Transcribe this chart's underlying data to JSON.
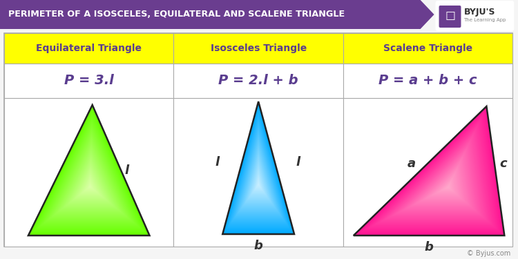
{
  "title": "PERIMETER OF A ISOSCELES, EQUILATERAL AND SCALENE TRIANGLE",
  "title_bg": "#6a3d8f",
  "title_color": "#ffffff",
  "header_bg": "#ffff00",
  "header_color": "#5a3d8f",
  "col_headers": [
    "Equilateral Triangle",
    "Isosceles Triangle",
    "Scalene Triangle"
  ],
  "formulas": [
    "P = 3.l",
    "P = 2.l + b",
    "P = a + b + c"
  ],
  "formula_color": "#5a3d8f",
  "bg_color": "#f5f5f5",
  "border_color": "#aaaaaa",
  "byju_color": "#888888",
  "tri1_color_outer": "#66ff00",
  "tri1_color_inner": "#ddffaa",
  "tri2_color_outer": "#00aaff",
  "tri2_color_inner": "#ccf0ff",
  "tri3_color_outer": "#ff1493",
  "tri3_color_inner": "#ffaacc"
}
